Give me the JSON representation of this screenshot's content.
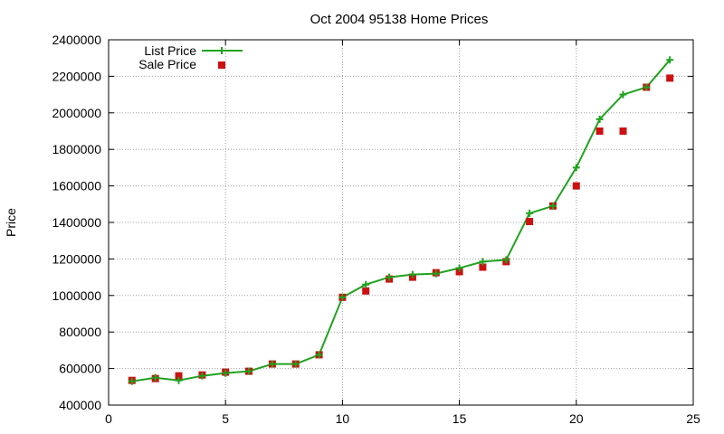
{
  "chart_data": {
    "type": "line",
    "title": "Oct 2004 95138 Home Prices",
    "xlabel": "",
    "ylabel": "Price",
    "xlim": [
      0,
      25
    ],
    "ylim": [
      400000,
      2400000
    ],
    "xticks": [
      "0",
      "5",
      "10",
      "15",
      "20",
      "25"
    ],
    "yticks": [
      "400000",
      "600000",
      "800000",
      "1000000",
      "1200000",
      "1400000",
      "1600000",
      "1800000",
      "2000000",
      "2200000",
      "2400000"
    ],
    "grid": true,
    "legend_position": "top-left",
    "series": [
      {
        "name": "List Price",
        "style": "line+plus",
        "color": "#1fa31f",
        "x": [
          1,
          2,
          3,
          4,
          5,
          6,
          7,
          8,
          9,
          10,
          11,
          12,
          13,
          14,
          15,
          16,
          17,
          18,
          19,
          20,
          21,
          22,
          23,
          24
        ],
        "y": [
          530000,
          550000,
          535000,
          560000,
          575000,
          585000,
          625000,
          625000,
          675000,
          990000,
          1060000,
          1100000,
          1115000,
          1120000,
          1150000,
          1185000,
          1195000,
          1450000,
          1490000,
          1700000,
          1965000,
          2100000,
          2140000,
          2290000
        ]
      },
      {
        "name": "Sale Price",
        "style": "square",
        "color": "#cc1111",
        "x": [
          1,
          2,
          3,
          4,
          5,
          6,
          7,
          8,
          9,
          10,
          11,
          12,
          13,
          14,
          15,
          16,
          17,
          18,
          19,
          20,
          21,
          22,
          23,
          24
        ],
        "y": [
          535000,
          545000,
          560000,
          565000,
          580000,
          585000,
          625000,
          625000,
          675000,
          990000,
          1025000,
          1090000,
          1100000,
          1125000,
          1130000,
          1155000,
          1185000,
          1405000,
          1490000,
          1600000,
          1900000,
          1900000,
          2140000,
          2190000
        ]
      }
    ]
  }
}
